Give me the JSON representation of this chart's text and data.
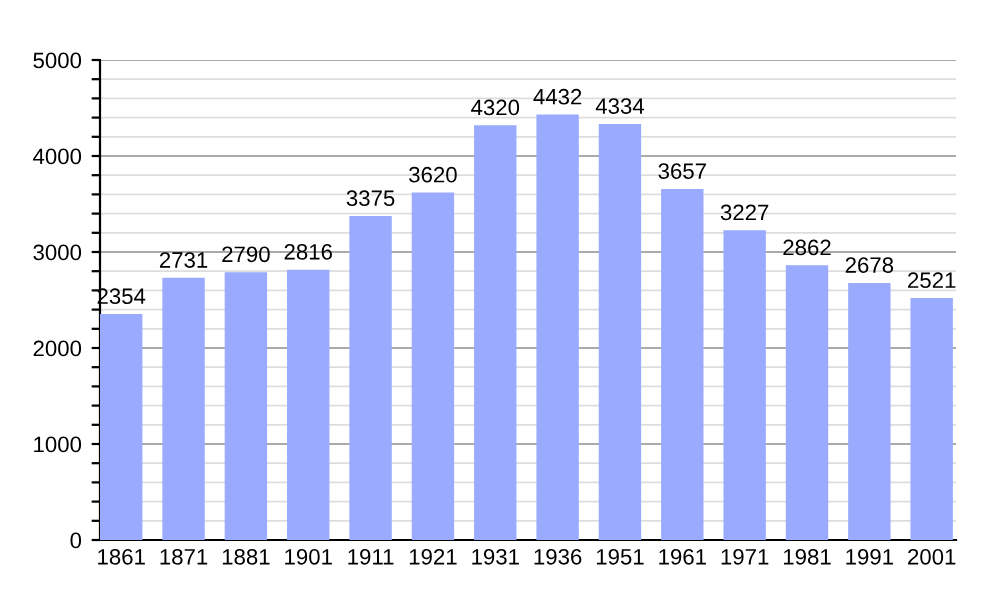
{
  "chart_data": {
    "type": "bar",
    "categories": [
      "1861",
      "1871",
      "1881",
      "1901",
      "1911",
      "1921",
      "1931",
      "1936",
      "1951",
      "1961",
      "1971",
      "1981",
      "1991",
      "2001"
    ],
    "values": [
      2354,
      2731,
      2790,
      2816,
      3375,
      3620,
      4320,
      4432,
      4334,
      3657,
      3227,
      2862,
      2678,
      2521
    ],
    "color": "#99aaff",
    "ylim": [
      0,
      5000
    ],
    "yticks": [
      0,
      {
        "value": 200,
        "label": null
      },
      {
        "value": 400,
        "label": null
      },
      {
        "value": 600,
        "label": null
      },
      {
        "value": 800,
        "label": null
      },
      1000,
      {
        "value": 1200,
        "label": null
      },
      {
        "value": 1400,
        "label": null
      },
      {
        "value": 1600,
        "label": null
      },
      {
        "value": 1800,
        "label": null
      },
      2000,
      {
        "value": 2200,
        "label": null
      },
      {
        "value": 2400,
        "label": null
      },
      {
        "value": 2600,
        "label": null
      },
      {
        "value": 2800,
        "label": null
      },
      3000,
      {
        "value": 3200,
        "label": null
      },
      {
        "value": 3400,
        "label": null
      },
      {
        "value": 3600,
        "label": null
      },
      {
        "value": 3800,
        "label": null
      },
      4000,
      {
        "value": 4200,
        "label": null
      },
      {
        "value": 4400,
        "label": null
      },
      {
        "value": 4600,
        "label": null
      },
      {
        "value": 4800,
        "label": null
      },
      5000
    ],
    "grid": "y",
    "data_labels": true
  }
}
